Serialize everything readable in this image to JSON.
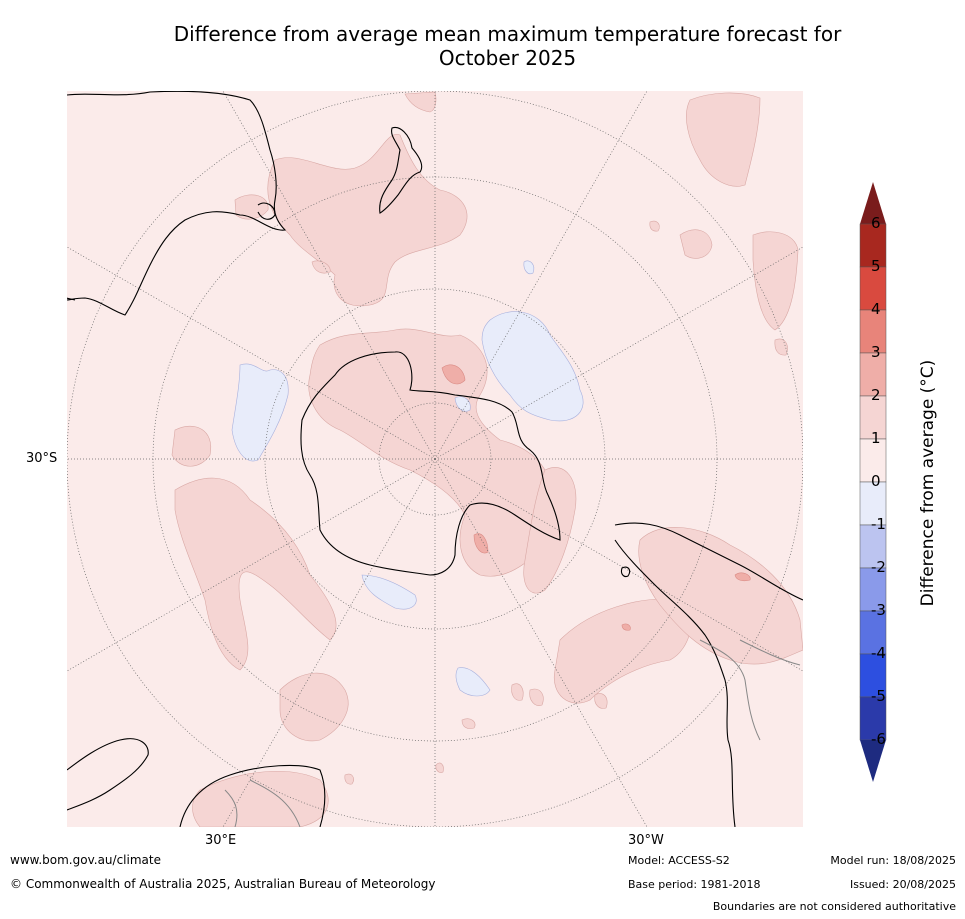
{
  "title_line1": "Difference from average mean maximum temperature forecast for",
  "title_line2": "October 2025",
  "labels": {
    "lat_30s": "30°S",
    "lon_30e": "30°E",
    "lon_30w": "30°W"
  },
  "colorbar": {
    "title": "Difference from average (°C)",
    "ticks": [
      "6",
      "5",
      "4",
      "3",
      "2",
      "1",
      "0",
      "-1",
      "-2",
      "-3",
      "-4",
      "-5",
      "-6"
    ],
    "colors_top_to_bottom": [
      "#7a1c1c",
      "#a8281f",
      "#d94a3f",
      "#e8847a",
      "#efaea8",
      "#f5d5d3",
      "#fbebea",
      "#e8ecfa",
      "#bcc4f0",
      "#8a9aea",
      "#5a72e2",
      "#2d4fe0",
      "#2b3aaa",
      "#1e2b80"
    ]
  },
  "colors": {
    "ocean_base": "#fbebea",
    "warm_1_2": "#f5d5d3",
    "warm_2_3": "#efaea8",
    "cool_0_1": "#e8ecfa",
    "graticule": "#666666",
    "coast": "#000000"
  },
  "footer": {
    "website": "www.bom.gov.au/climate",
    "copyright": "© Commonwealth of Australia 2025, Australian Bureau of Meteorology",
    "model": "Model: ACCESS-S2",
    "base_period": "Base period: 1981-2018",
    "model_run": "Model run: 18/08/2025",
    "issued": "Issued: 20/08/2025",
    "disclaimer": "Boundaries are not considered authoritative"
  }
}
